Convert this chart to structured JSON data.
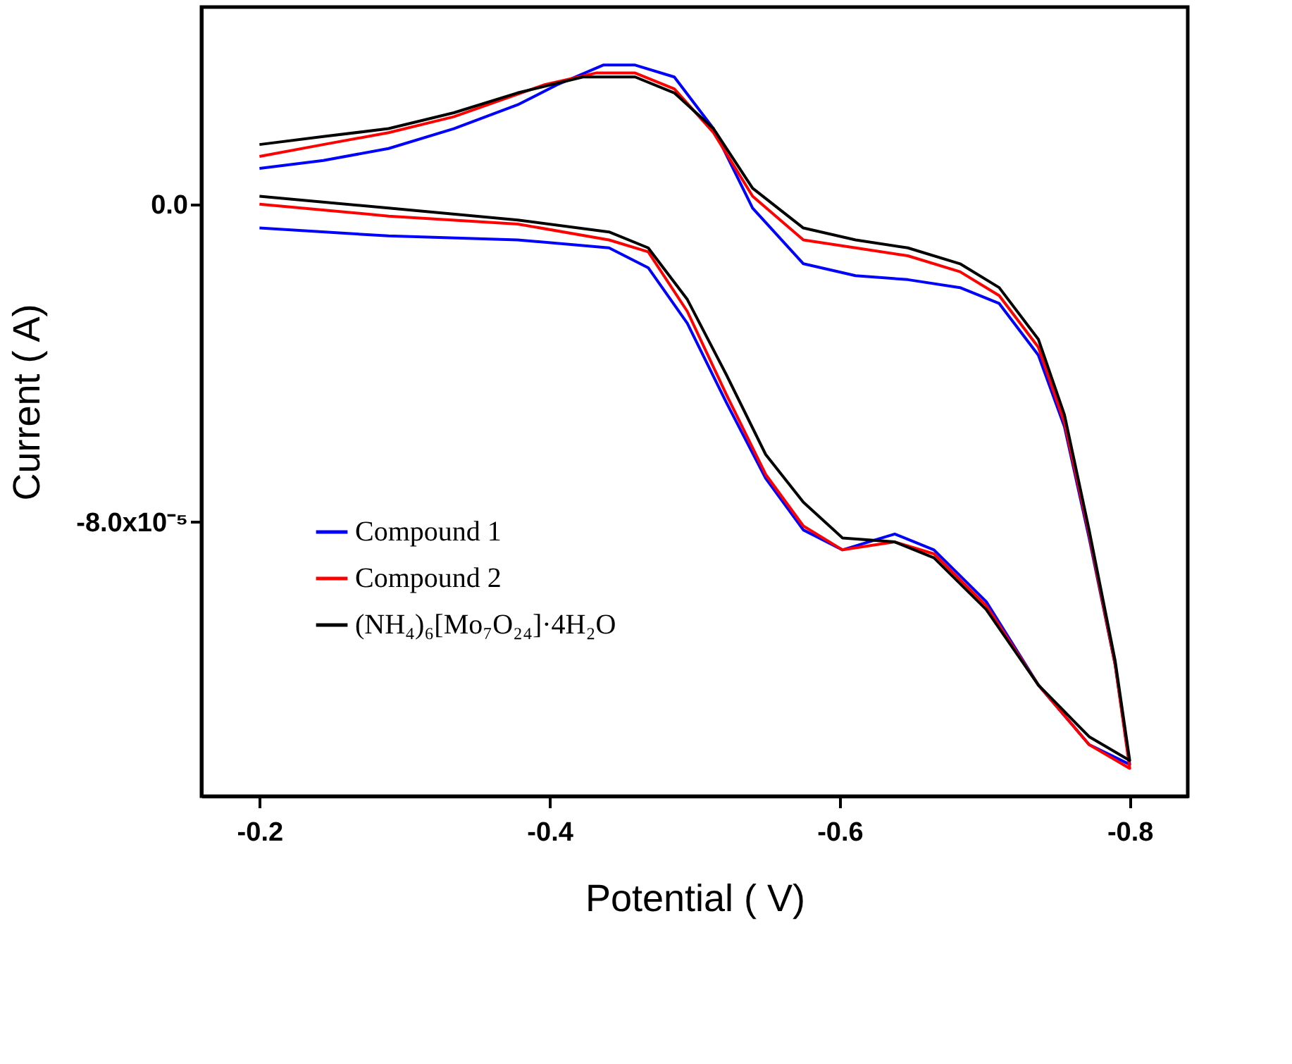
{
  "chart_data": {
    "type": "line",
    "xlabel": "Potential ( V)",
    "ylabel": "Current ( A)",
    "xlim": [
      -0.16,
      -0.84
    ],
    "xticks": [
      -0.2,
      -0.4,
      -0.6,
      -0.8
    ],
    "ylim": [
      -0.000149,
      4.96e-05
    ],
    "yticks": [
      {
        "value": 0,
        "label": "0.0"
      },
      {
        "value": -8e-05,
        "label": "-8.0x10⁻⁵"
      }
    ],
    "grid": false,
    "legend": "bottom left",
    "marker": "none",
    "line_style": "solid",
    "series": [
      {
        "name": "Compound 1",
        "color": "#0000ff",
        "x": [
          -0.2,
          -0.289,
          -0.378,
          -0.441,
          -0.468,
          -0.495,
          -0.522,
          -0.549,
          -0.575,
          -0.602,
          -0.638,
          -0.665,
          -0.701,
          -0.737,
          -0.772,
          -0.8,
          -0.79,
          -0.772,
          -0.755,
          -0.737,
          -0.71,
          -0.683,
          -0.647,
          -0.611,
          -0.575,
          -0.54,
          -0.513,
          -0.486,
          -0.459,
          -0.437,
          -0.405,
          -0.378,
          -0.334,
          -0.289,
          -0.244,
          -0.2
        ],
        "values": [
          -6e-06,
          -8e-06,
          -9e-06,
          -1.1e-05,
          -1.6e-05,
          -3e-05,
          -5e-05,
          -6.9e-05,
          -8.2e-05,
          -8.7e-05,
          -8.3e-05,
          -8.7e-05,
          -0.0001,
          -0.000121,
          -0.000136,
          -0.000141,
          -0.000116,
          -8.4e-05,
          -5.6e-05,
          -3.8e-05,
          -2.5e-05,
          -2.1e-05,
          -1.9e-05,
          -1.8e-05,
          -1.5e-05,
          -1e-06,
          1.9e-05,
          3.2e-05,
          3.5e-05,
          3.5e-05,
          3e-05,
          2.5e-05,
          1.9e-05,
          1.4e-05,
          1.1e-05,
          9e-06
        ]
      },
      {
        "name": "Compound 2",
        "color": "#ff0000",
        "x": [
          -0.2,
          -0.289,
          -0.378,
          -0.441,
          -0.468,
          -0.495,
          -0.522,
          -0.549,
          -0.575,
          -0.602,
          -0.638,
          -0.665,
          -0.701,
          -0.737,
          -0.772,
          -0.8,
          -0.79,
          -0.772,
          -0.755,
          -0.737,
          -0.71,
          -0.683,
          -0.647,
          -0.611,
          -0.575,
          -0.54,
          -0.513,
          -0.486,
          -0.459,
          -0.432,
          -0.396,
          -0.334,
          -0.289,
          -0.244,
          -0.2
        ],
        "values": [
          0,
          -3e-06,
          -5e-06,
          -9e-06,
          -1.2e-05,
          -2.7e-05,
          -4.8e-05,
          -6.8e-05,
          -8.1e-05,
          -8.7e-05,
          -8.5e-05,
          -8.8e-05,
          -0.000101,
          -0.000121,
          -0.000136,
          -0.000142,
          -0.000116,
          -8.3e-05,
          -5.5e-05,
          -3.6e-05,
          -2.3e-05,
          -1.7e-05,
          -1.3e-05,
          -1.1e-05,
          -9e-06,
          2e-06,
          1.8e-05,
          2.9e-05,
          3.3e-05,
          3.3e-05,
          3e-05,
          2.2e-05,
          1.8e-05,
          1.5e-05,
          1.2e-05
        ]
      },
      {
        "name": "(NH₄)₆[Mo₇O₂₄]·4H₂O",
        "color": "#000000",
        "x": [
          -0.2,
          -0.289,
          -0.378,
          -0.441,
          -0.468,
          -0.495,
          -0.522,
          -0.549,
          -0.575,
          -0.602,
          -0.638,
          -0.665,
          -0.701,
          -0.737,
          -0.772,
          -0.8,
          -0.79,
          -0.772,
          -0.755,
          -0.737,
          -0.71,
          -0.683,
          -0.647,
          -0.611,
          -0.575,
          -0.54,
          -0.513,
          -0.486,
          -0.459,
          -0.423,
          -0.378,
          -0.334,
          -0.289,
          -0.244,
          -0.2
        ],
        "values": [
          2e-06,
          -1e-06,
          -4e-06,
          -7e-06,
          -1.1e-05,
          -2.4e-05,
          -4.3e-05,
          -6.3e-05,
          -7.5e-05,
          -8.4e-05,
          -8.5e-05,
          -8.9e-05,
          -0.000102,
          -0.000121,
          -0.000134,
          -0.00014,
          -0.000115,
          -8.2e-05,
          -5.3e-05,
          -3.4e-05,
          -2.1e-05,
          -1.5e-05,
          -1.1e-05,
          -9e-06,
          -6e-06,
          4e-06,
          1.9e-05,
          2.8e-05,
          3.2e-05,
          3.2e-05,
          2.8e-05,
          2.3e-05,
          1.9e-05,
          1.7e-05,
          1.5e-05
        ]
      }
    ]
  }
}
